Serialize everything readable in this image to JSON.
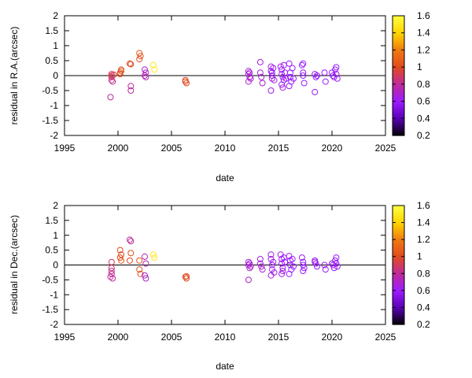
{
  "chart_data": [
    {
      "type": "scatter",
      "title": "",
      "xlabel": "date",
      "ylabel": "residual in R.A.(arcsec)",
      "xlim": [
        1995,
        2025
      ],
      "ylim": [
        -2,
        2
      ],
      "xticks": [
        "1995",
        "2000",
        "2005",
        "2010",
        "2015",
        "2020",
        "2025"
      ],
      "yticks": [
        "-2",
        "-1.5",
        "-1",
        "-0.5",
        "0",
        "0.5",
        "1",
        "1.5",
        "2"
      ],
      "zero_line": true,
      "marker": "open-circle",
      "colorbar": {
        "range": [
          0.2,
          1.6
        ],
        "ticks": [
          "0.2",
          "0.4",
          "0.6",
          "0.8",
          "1",
          "1.2",
          "1.4",
          "1.6"
        ],
        "palette": [
          "#000000",
          "#5a00b4",
          "#9b1bff",
          "#c02a9b",
          "#e04a20",
          "#ef7a10",
          "#ffd400",
          "#ffff40"
        ]
      },
      "points": [
        [
          1999.4,
          0.05,
          0.9
        ],
        [
          1999.4,
          -0.05,
          0.9
        ],
        [
          1999.4,
          -0.15,
          0.85
        ],
        [
          1999.5,
          -0.2,
          0.8
        ],
        [
          1999.4,
          0.0,
          0.9
        ],
        [
          1999.3,
          -0.72,
          0.8
        ],
        [
          1999.6,
          0.03,
          0.95
        ],
        [
          2000.2,
          0.1,
          1.0
        ],
        [
          2000.3,
          0.2,
          1.0
        ],
        [
          2000.2,
          0.05,
          1.0
        ],
        [
          2000.3,
          0.15,
          1.05
        ],
        [
          2001.1,
          0.4,
          1.0
        ],
        [
          2001.2,
          -0.35,
          0.8
        ],
        [
          2001.2,
          -0.5,
          0.8
        ],
        [
          2001.2,
          0.38,
          1.0
        ],
        [
          2002.0,
          0.75,
          1.05
        ],
        [
          2002.0,
          0.55,
          1.0
        ],
        [
          2002.1,
          0.65,
          1.05
        ],
        [
          2002.5,
          0.2,
          0.7
        ],
        [
          2002.6,
          0.1,
          0.7
        ],
        [
          2002.5,
          0.0,
          0.75
        ],
        [
          2002.6,
          -0.05,
          0.75
        ],
        [
          2003.3,
          0.35,
          1.5
        ],
        [
          2003.4,
          0.2,
          1.5
        ],
        [
          2006.3,
          -0.15,
          1.0
        ],
        [
          2006.4,
          -0.25,
          1.0
        ],
        [
          2006.3,
          -0.2,
          1.0
        ],
        [
          2012.2,
          0.15,
          0.7
        ],
        [
          2012.2,
          0.05,
          0.7
        ],
        [
          2012.3,
          -0.05,
          0.7
        ],
        [
          2012.2,
          -0.2,
          0.7
        ],
        [
          2012.3,
          0.1,
          0.65
        ],
        [
          2012.4,
          -0.1,
          0.7
        ],
        [
          2013.3,
          0.45,
          0.65
        ],
        [
          2013.3,
          0.1,
          0.65
        ],
        [
          2013.4,
          -0.05,
          0.7
        ],
        [
          2013.5,
          -0.25,
          0.7
        ],
        [
          2014.3,
          0.3,
          0.65
        ],
        [
          2014.3,
          0.15,
          0.65
        ],
        [
          2014.4,
          0.0,
          0.6
        ],
        [
          2014.4,
          -0.1,
          0.65
        ],
        [
          2014.3,
          -0.5,
          0.65
        ],
        [
          2014.5,
          0.25,
          0.6
        ],
        [
          2014.6,
          -0.15,
          0.65
        ],
        [
          2014.4,
          0.1,
          0.6
        ],
        [
          2015.2,
          0.3,
          0.65
        ],
        [
          2015.3,
          0.2,
          0.6
        ],
        [
          2015.3,
          0.05,
          0.6
        ],
        [
          2015.4,
          -0.05,
          0.65
        ],
        [
          2015.3,
          -0.3,
          0.6
        ],
        [
          2015.4,
          -0.4,
          0.65
        ],
        [
          2015.5,
          0.35,
          0.6
        ],
        [
          2015.5,
          -0.15,
          0.6
        ],
        [
          2015.6,
          0.1,
          0.6
        ],
        [
          2015.7,
          -0.1,
          0.6
        ],
        [
          2016.0,
          0.4,
          0.6
        ],
        [
          2016.1,
          0.1,
          0.6
        ],
        [
          2016.1,
          -0.05,
          0.6
        ],
        [
          2016.2,
          -0.2,
          0.6
        ],
        [
          2016.0,
          -0.35,
          0.6
        ],
        [
          2016.3,
          0.25,
          0.6
        ],
        [
          2016.4,
          -0.1,
          0.6
        ],
        [
          2017.2,
          0.35,
          0.6
        ],
        [
          2017.3,
          0.1,
          0.6
        ],
        [
          2017.3,
          0.0,
          0.6
        ],
        [
          2017.4,
          -0.25,
          0.6
        ],
        [
          2017.3,
          0.4,
          0.6
        ],
        [
          2018.4,
          0.05,
          0.6
        ],
        [
          2018.5,
          -0.05,
          0.6
        ],
        [
          2018.4,
          -0.55,
          0.6
        ],
        [
          2018.6,
          0.0,
          0.6
        ],
        [
          2019.3,
          0.1,
          0.6
        ],
        [
          2019.4,
          -0.2,
          0.6
        ],
        [
          2020.0,
          0.1,
          0.6
        ],
        [
          2020.1,
          0.0,
          0.6
        ],
        [
          2020.2,
          -0.05,
          0.6
        ],
        [
          2020.3,
          0.2,
          0.6
        ],
        [
          2020.4,
          0.28,
          0.6
        ],
        [
          2020.4,
          0.05,
          0.6
        ],
        [
          2020.5,
          -0.1,
          0.6
        ]
      ]
    },
    {
      "type": "scatter",
      "title": "",
      "xlabel": "date",
      "ylabel": "residual in Dec.(arcsec)",
      "xlim": [
        1995,
        2025
      ],
      "ylim": [
        -2,
        2
      ],
      "xticks": [
        "1995",
        "2000",
        "2005",
        "2010",
        "2015",
        "2020",
        "2025"
      ],
      "yticks": [
        "-2",
        "-1.5",
        "-1",
        "-0.5",
        "0",
        "0.5",
        "1",
        "1.5",
        "2"
      ],
      "zero_line": true,
      "marker": "open-circle",
      "colorbar": {
        "range": [
          0.2,
          1.6
        ],
        "ticks": [
          "0.2",
          "0.4",
          "0.6",
          "0.8",
          "1",
          "1.2",
          "1.4",
          "1.6"
        ],
        "palette": [
          "#000000",
          "#5a00b4",
          "#9b1bff",
          "#c02a9b",
          "#e04a20",
          "#ef7a10",
          "#ffd400",
          "#ffff40"
        ]
      },
      "points": [
        [
          1999.4,
          0.1,
          0.9
        ],
        [
          1999.4,
          -0.1,
          0.85
        ],
        [
          1999.4,
          -0.2,
          0.85
        ],
        [
          1999.4,
          -0.3,
          0.8
        ],
        [
          1999.3,
          -0.4,
          0.8
        ],
        [
          1999.5,
          -0.45,
          0.8
        ],
        [
          2000.2,
          0.5,
          1.0
        ],
        [
          2000.3,
          0.35,
          1.0
        ],
        [
          2000.2,
          0.25,
          1.0
        ],
        [
          2000.3,
          0.15,
          1.05
        ],
        [
          2001.1,
          0.85,
          0.8
        ],
        [
          2001.2,
          0.8,
          0.8
        ],
        [
          2001.2,
          0.4,
          1.0
        ],
        [
          2001.1,
          0.15,
          1.0
        ],
        [
          2002.0,
          0.15,
          1.05
        ],
        [
          2002.0,
          -0.15,
          1.0
        ],
        [
          2002.1,
          -0.3,
          1.05
        ],
        [
          2002.5,
          0.28,
          0.75
        ],
        [
          2002.6,
          0.05,
          0.75
        ],
        [
          2002.5,
          -0.35,
          0.7
        ],
        [
          2002.6,
          -0.45,
          0.7
        ],
        [
          2003.3,
          0.35,
          1.5
        ],
        [
          2003.4,
          0.25,
          1.5
        ],
        [
          2006.3,
          -0.4,
          1.0
        ],
        [
          2006.4,
          -0.45,
          1.0
        ],
        [
          2006.4,
          -0.38,
          1.0
        ],
        [
          2012.2,
          0.1,
          0.7
        ],
        [
          2012.2,
          0.0,
          0.7
        ],
        [
          2012.3,
          -0.1,
          0.7
        ],
        [
          2012.2,
          -0.5,
          0.7
        ],
        [
          2012.3,
          0.05,
          0.65
        ],
        [
          2012.4,
          -0.05,
          0.7
        ],
        [
          2013.3,
          0.2,
          0.65
        ],
        [
          2013.3,
          0.05,
          0.65
        ],
        [
          2013.4,
          -0.05,
          0.7
        ],
        [
          2013.5,
          -0.15,
          0.7
        ],
        [
          2014.3,
          0.35,
          0.65
        ],
        [
          2014.3,
          0.2,
          0.65
        ],
        [
          2014.4,
          0.0,
          0.6
        ],
        [
          2014.4,
          -0.15,
          0.65
        ],
        [
          2014.3,
          -0.35,
          0.65
        ],
        [
          2014.5,
          0.1,
          0.6
        ],
        [
          2014.6,
          -0.25,
          0.65
        ],
        [
          2015.2,
          0.35,
          0.65
        ],
        [
          2015.3,
          0.2,
          0.6
        ],
        [
          2015.3,
          0.05,
          0.6
        ],
        [
          2015.4,
          -0.1,
          0.65
        ],
        [
          2015.3,
          -0.3,
          0.6
        ],
        [
          2015.4,
          -0.2,
          0.65
        ],
        [
          2015.5,
          0.25,
          0.6
        ],
        [
          2015.6,
          0.1,
          0.6
        ],
        [
          2016.0,
          0.3,
          0.6
        ],
        [
          2016.1,
          0.15,
          0.6
        ],
        [
          2016.1,
          0.0,
          0.6
        ],
        [
          2016.2,
          -0.15,
          0.6
        ],
        [
          2016.0,
          -0.3,
          0.6
        ],
        [
          2016.3,
          0.2,
          0.6
        ],
        [
          2016.4,
          -0.05,
          0.6
        ],
        [
          2017.2,
          0.25,
          0.6
        ],
        [
          2017.3,
          0.1,
          0.6
        ],
        [
          2017.3,
          0.0,
          0.6
        ],
        [
          2017.4,
          -0.1,
          0.6
        ],
        [
          2017.3,
          -0.2,
          0.6
        ],
        [
          2018.4,
          0.1,
          0.6
        ],
        [
          2018.5,
          0.05,
          0.6
        ],
        [
          2018.4,
          0.15,
          0.6
        ],
        [
          2018.6,
          -0.05,
          0.6
        ],
        [
          2019.3,
          0.0,
          0.6
        ],
        [
          2019.4,
          -0.15,
          0.6
        ],
        [
          2020.0,
          0.05,
          0.6
        ],
        [
          2020.1,
          0.0,
          0.6
        ],
        [
          2020.2,
          -0.1,
          0.6
        ],
        [
          2020.3,
          0.15,
          0.6
        ],
        [
          2020.4,
          0.25,
          0.6
        ],
        [
          2020.4,
          0.05,
          0.6
        ],
        [
          2020.5,
          -0.05,
          0.6
        ]
      ]
    }
  ]
}
